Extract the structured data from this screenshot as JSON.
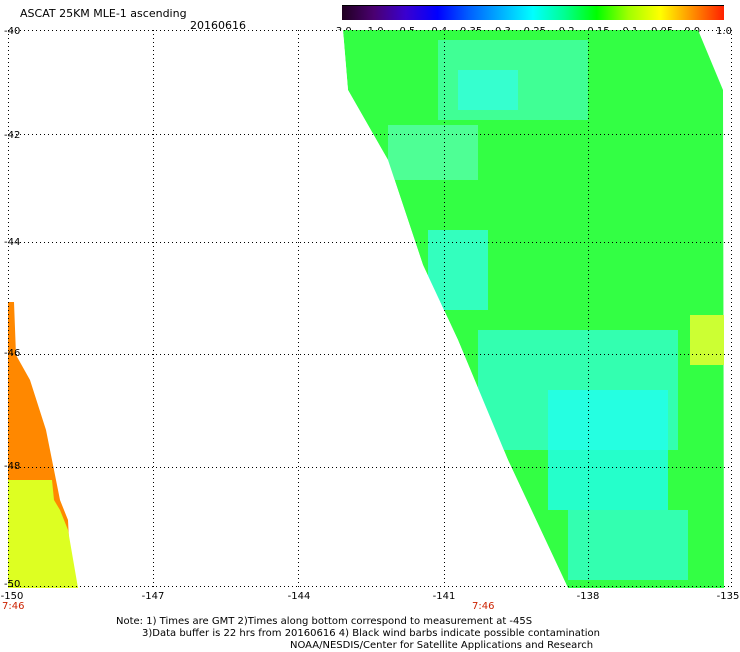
{
  "title": "ASCAT 25KM MLE-1 ascending",
  "date": "20160616",
  "colorbar": {
    "labels": [
      "-3.0",
      "-1.0",
      "-0.5",
      "-0.4",
      "-0.35",
      "-0.3",
      "-0.25",
      "-0.2",
      "-0.15",
      "-0.1",
      "-0.05",
      "0.0",
      "1.0"
    ],
    "colors": [
      "#200020",
      "#4a0070",
      "#3a00d0",
      "#0000ff",
      "#0060ff",
      "#00b0ff",
      "#00ffff",
      "#00ff90",
      "#00ff00",
      "#a0ff00",
      "#ffff00",
      "#ff9000",
      "#ff2000"
    ]
  },
  "axes": {
    "lat_labels": [
      "-40",
      "-42",
      "-44",
      "-46",
      "-48",
      "-50"
    ],
    "lon_labels": [
      "-150",
      "-147",
      "-144",
      "-141",
      "-138",
      "-135"
    ],
    "lat_range": [
      -50,
      -40
    ],
    "lon_range": [
      -150,
      -135
    ]
  },
  "time_labels": [
    "7:46",
    "7:46"
  ],
  "notes": [
    "Note: 1) Times are GMT 2)Times along bottom correspond to measurement at -45S",
    "3)Data buffer is 22 hrs from 20160616 4) Black wind barbs indicate possible contamination",
    "NOAA/NESDIS/Center for Satellite Applications and Research"
  ]
}
